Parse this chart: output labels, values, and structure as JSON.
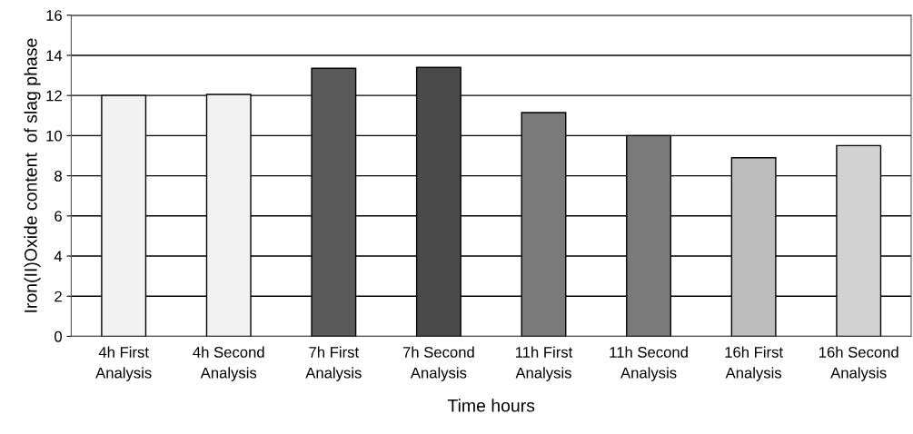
{
  "chart_data": {
    "type": "bar",
    "xlabel": "Time hours",
    "ylabel": "Iron(II)Oxide content  of slag phase",
    "categories": [
      "4h First\nAnalysis",
      "4h Second\nAnalysis",
      "7h First\nAnalysis",
      "7h Second\nAnalysis",
      "11h First\nAnalysis",
      "11h Second\nAnalysis",
      "16h First\nAnalysis",
      "16h Second\nAnalysis"
    ],
    "values": [
      12.0,
      12.05,
      13.35,
      13.4,
      11.15,
      10.0,
      8.9,
      9.5
    ],
    "colors": [
      "#f2f2f2",
      "#f2f2f2",
      "#5a5a5a",
      "#4a4a4a",
      "#7a7a7a",
      "#7a7a7a",
      "#bdbdbd",
      "#d2d2d2"
    ],
    "ylim": [
      0,
      16
    ],
    "yticks": [
      0,
      2,
      4,
      6,
      8,
      10,
      12,
      14,
      16
    ],
    "grid": "y",
    "legend": false
  }
}
